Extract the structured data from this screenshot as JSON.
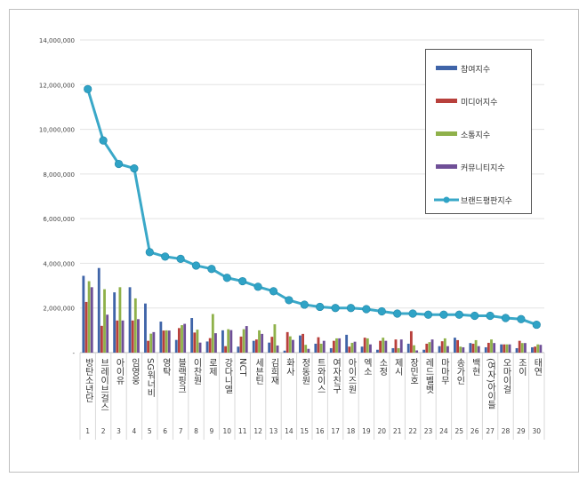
{
  "chart_data": {
    "type": "bar+line",
    "title": "",
    "xlabel": "",
    "ylabel": "",
    "ylim": [
      0,
      14000000
    ],
    "yticks": [
      "-",
      "2,000,000",
      "4,000,000",
      "6,000,000",
      "8,000,000",
      "10,000,000",
      "12,000,000",
      "14,000,000"
    ],
    "grid": true,
    "legend_placement": "top-right",
    "ranks": [
      "1",
      "2",
      "3",
      "4",
      "5",
      "6",
      "7",
      "8",
      "9",
      "10",
      "11",
      "12",
      "13",
      "14",
      "15",
      "16",
      "17",
      "18",
      "19",
      "20",
      "21",
      "22",
      "23",
      "24",
      "25",
      "26",
      "27",
      "28",
      "29",
      "30"
    ],
    "categories": [
      "방탄소년단",
      "브레이브걸스",
      "아이유",
      "임영웅",
      "SG워너비",
      "영탁",
      "블랙핑크",
      "이찬원",
      "로제",
      "강다니엘",
      "NCT",
      "세븐틴",
      "김희재",
      "화사",
      "정동원",
      "트와이스",
      "여자친구",
      "아이즈원",
      "엑소",
      "소정",
      "제시",
      "장민호",
      "레드벨벳",
      "마마무",
      "송가인",
      "백현",
      "(여자)아이들",
      "오마이걸",
      "조이",
      "태연"
    ],
    "series": [
      {
        "name": "참여지수",
        "type": "bar",
        "color": "#3f64a8",
        "values": [
          3440000,
          3790000,
          2700000,
          2930000,
          2200000,
          1390000,
          570000,
          1550000,
          500000,
          1000000,
          270000,
          530000,
          450000,
          90000,
          770000,
          400000,
          200000,
          800000,
          270000,
          130000,
          200000,
          400000,
          130000,
          290000,
          670000,
          430000,
          240000,
          370000,
          200000,
          240000
        ]
      },
      {
        "name": "미디어지수",
        "type": "bar",
        "color": "#b8403c",
        "values": [
          2270000,
          1200000,
          1440000,
          1440000,
          530000,
          990000,
          1100000,
          900000,
          650000,
          290000,
          720000,
          590000,
          710000,
          920000,
          840000,
          690000,
          530000,
          270000,
          670000,
          530000,
          590000,
          960000,
          400000,
          510000,
          560000,
          400000,
          440000,
          370000,
          530000,
          270000
        ]
      },
      {
        "name": "소통지수",
        "type": "bar",
        "color": "#8fb14a",
        "values": [
          3200000,
          2840000,
          2930000,
          2430000,
          850000,
          1000000,
          1230000,
          1030000,
          1730000,
          1050000,
          1050000,
          1000000,
          1270000,
          730000,
          350000,
          400000,
          640000,
          440000,
          640000,
          670000,
          200000,
          330000,
          470000,
          640000,
          270000,
          560000,
          590000,
          370000,
          430000,
          370000
        ]
      },
      {
        "name": "커뮤니티지수",
        "type": "bar",
        "color": "#6f4f97",
        "values": [
          2930000,
          1700000,
          1440000,
          1500000,
          920000,
          990000,
          1290000,
          450000,
          870000,
          1010000,
          1190000,
          840000,
          320000,
          570000,
          170000,
          530000,
          640000,
          490000,
          370000,
          530000,
          590000,
          100000,
          590000,
          290000,
          240000,
          290000,
          430000,
          370000,
          430000,
          350000
        ]
      },
      {
        "name": "브랜드평판지수",
        "type": "line",
        "color": "#3aa8c8",
        "values": [
          11800000,
          9500000,
          8450000,
          8250000,
          4500000,
          4300000,
          4200000,
          3900000,
          3750000,
          3350000,
          3200000,
          2950000,
          2750000,
          2350000,
          2150000,
          2050000,
          2000000,
          2000000,
          1950000,
          1850000,
          1750000,
          1750000,
          1700000,
          1700000,
          1700000,
          1650000,
          1650000,
          1550000,
          1500000,
          1250000
        ]
      }
    ]
  }
}
